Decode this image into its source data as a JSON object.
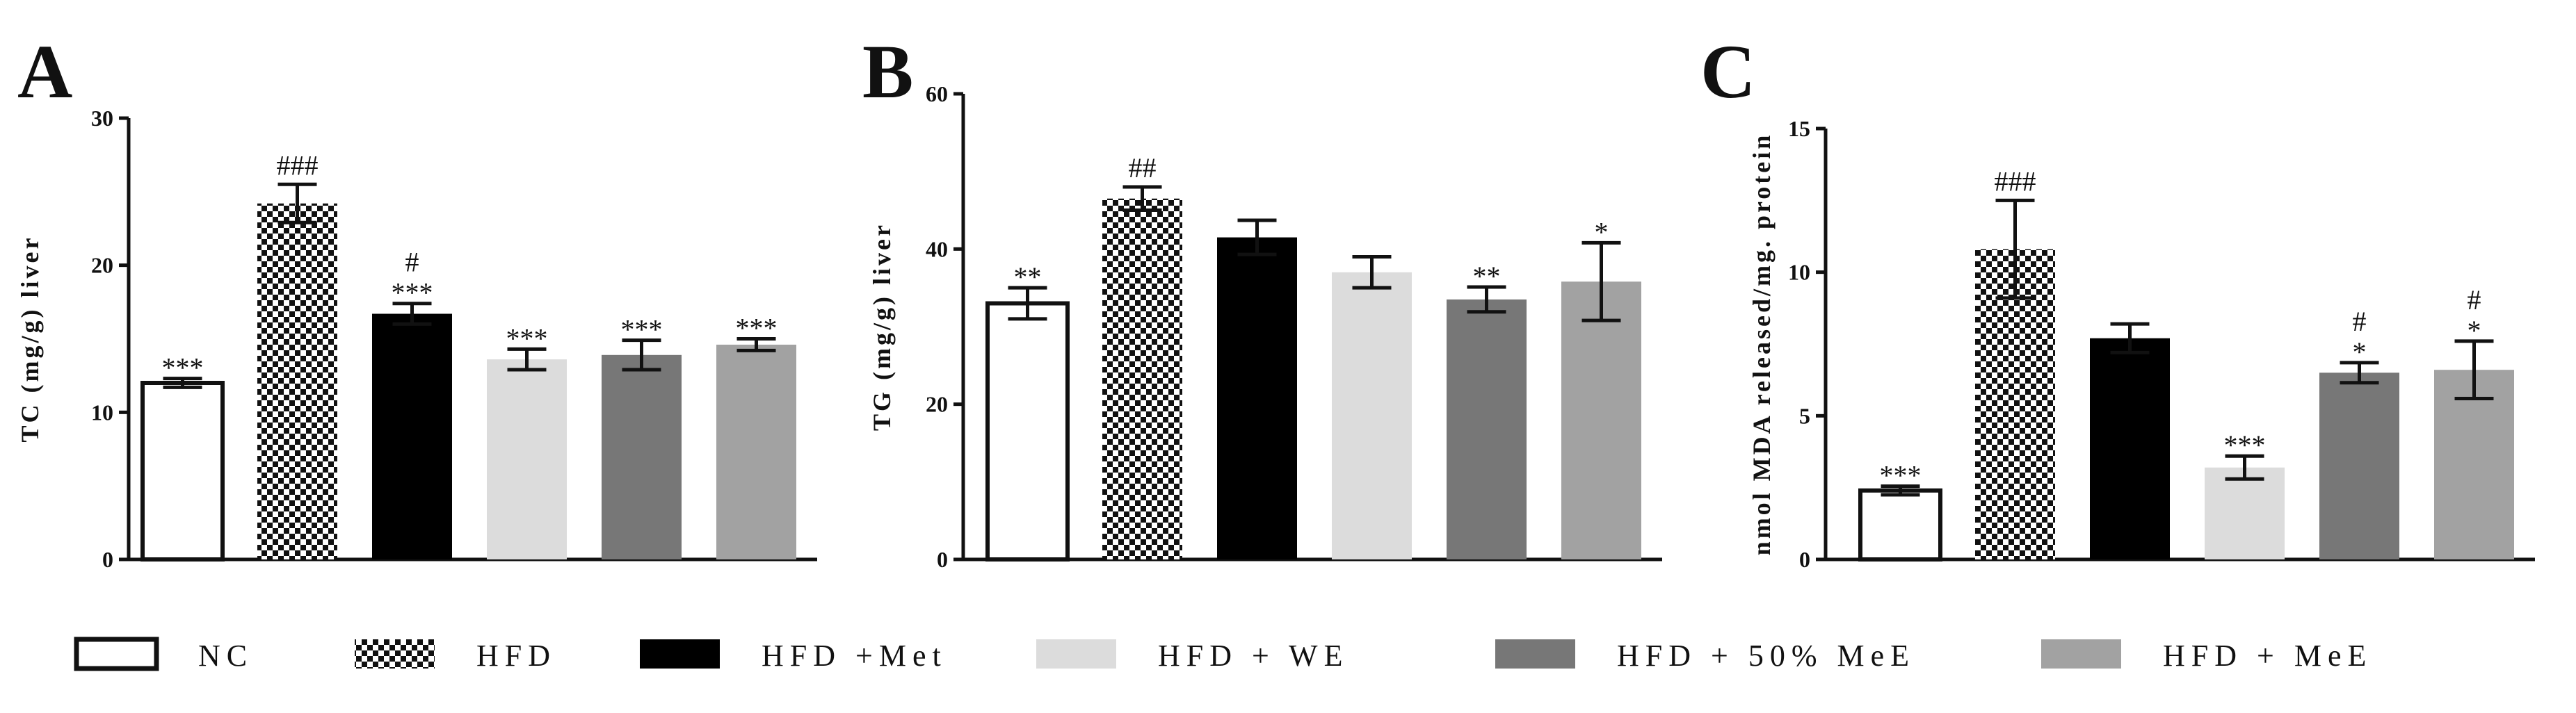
{
  "legend": [
    {
      "label": "NC",
      "fill": "white"
    },
    {
      "label": "HFD",
      "fill": "checker"
    },
    {
      "label": "HFD +Met",
      "fill": "#000000"
    },
    {
      "label": "HFD + WE",
      "fill": "#dcdcdc"
    },
    {
      "label": "HFD + 50% MeE",
      "fill": "#777777"
    },
    {
      "label": "HFD + MeE",
      "fill": "#a2a2a2"
    }
  ],
  "chart_data": [
    {
      "type": "bar",
      "panel": "A",
      "ylabel": "TC (mg/g) liver",
      "ylim": [
        0,
        30
      ],
      "yticks": [
        0,
        10,
        20,
        30
      ],
      "categories": [
        "NC",
        "HFD",
        "HFD +Met",
        "HFD + WE",
        "HFD + 50% MeE",
        "HFD + MeE"
      ],
      "values": [
        12.0,
        24.2,
        16.7,
        13.6,
        13.9,
        14.6
      ],
      "errors": [
        0.3,
        1.3,
        0.7,
        0.7,
        1.0,
        0.4
      ],
      "annotations": [
        [
          "***"
        ],
        [
          "###"
        ],
        [
          "#",
          "***"
        ],
        [
          "***"
        ],
        [
          "***"
        ],
        [
          "***"
        ]
      ]
    },
    {
      "type": "bar",
      "panel": "B",
      "ylabel": "TG (mg/g) liver",
      "ylim": [
        0,
        60
      ],
      "yticks": [
        0,
        20,
        40,
        60
      ],
      "categories": [
        "NC",
        "HFD",
        "HFD +Met",
        "HFD + WE",
        "HFD + 50% MeE",
        "HFD + MeE"
      ],
      "values": [
        33.0,
        46.5,
        41.5,
        37.0,
        33.5,
        35.8
      ],
      "errors": [
        2.0,
        1.5,
        2.2,
        2.0,
        1.6,
        5.0
      ],
      "annotations": [
        [
          "**"
        ],
        [
          "##"
        ],
        [],
        [],
        [
          "**"
        ],
        [
          "*"
        ]
      ]
    },
    {
      "type": "bar",
      "panel": "C",
      "ylabel": "nmol MDA released/mg. protein",
      "ylim": [
        0,
        15
      ],
      "yticks": [
        0,
        5,
        10,
        15
      ],
      "categories": [
        "NC",
        "HFD",
        "HFD +Met",
        "HFD + WE",
        "HFD + 50% MeE",
        "HFD + MeE"
      ],
      "values": [
        2.4,
        10.8,
        7.7,
        3.2,
        6.5,
        6.6
      ],
      "errors": [
        0.15,
        1.7,
        0.5,
        0.4,
        0.35,
        1.0
      ],
      "annotations": [
        [
          "***"
        ],
        [
          "###"
        ],
        [],
        [
          "***"
        ],
        [
          "#",
          "*"
        ],
        [
          "#",
          "*"
        ]
      ]
    }
  ]
}
